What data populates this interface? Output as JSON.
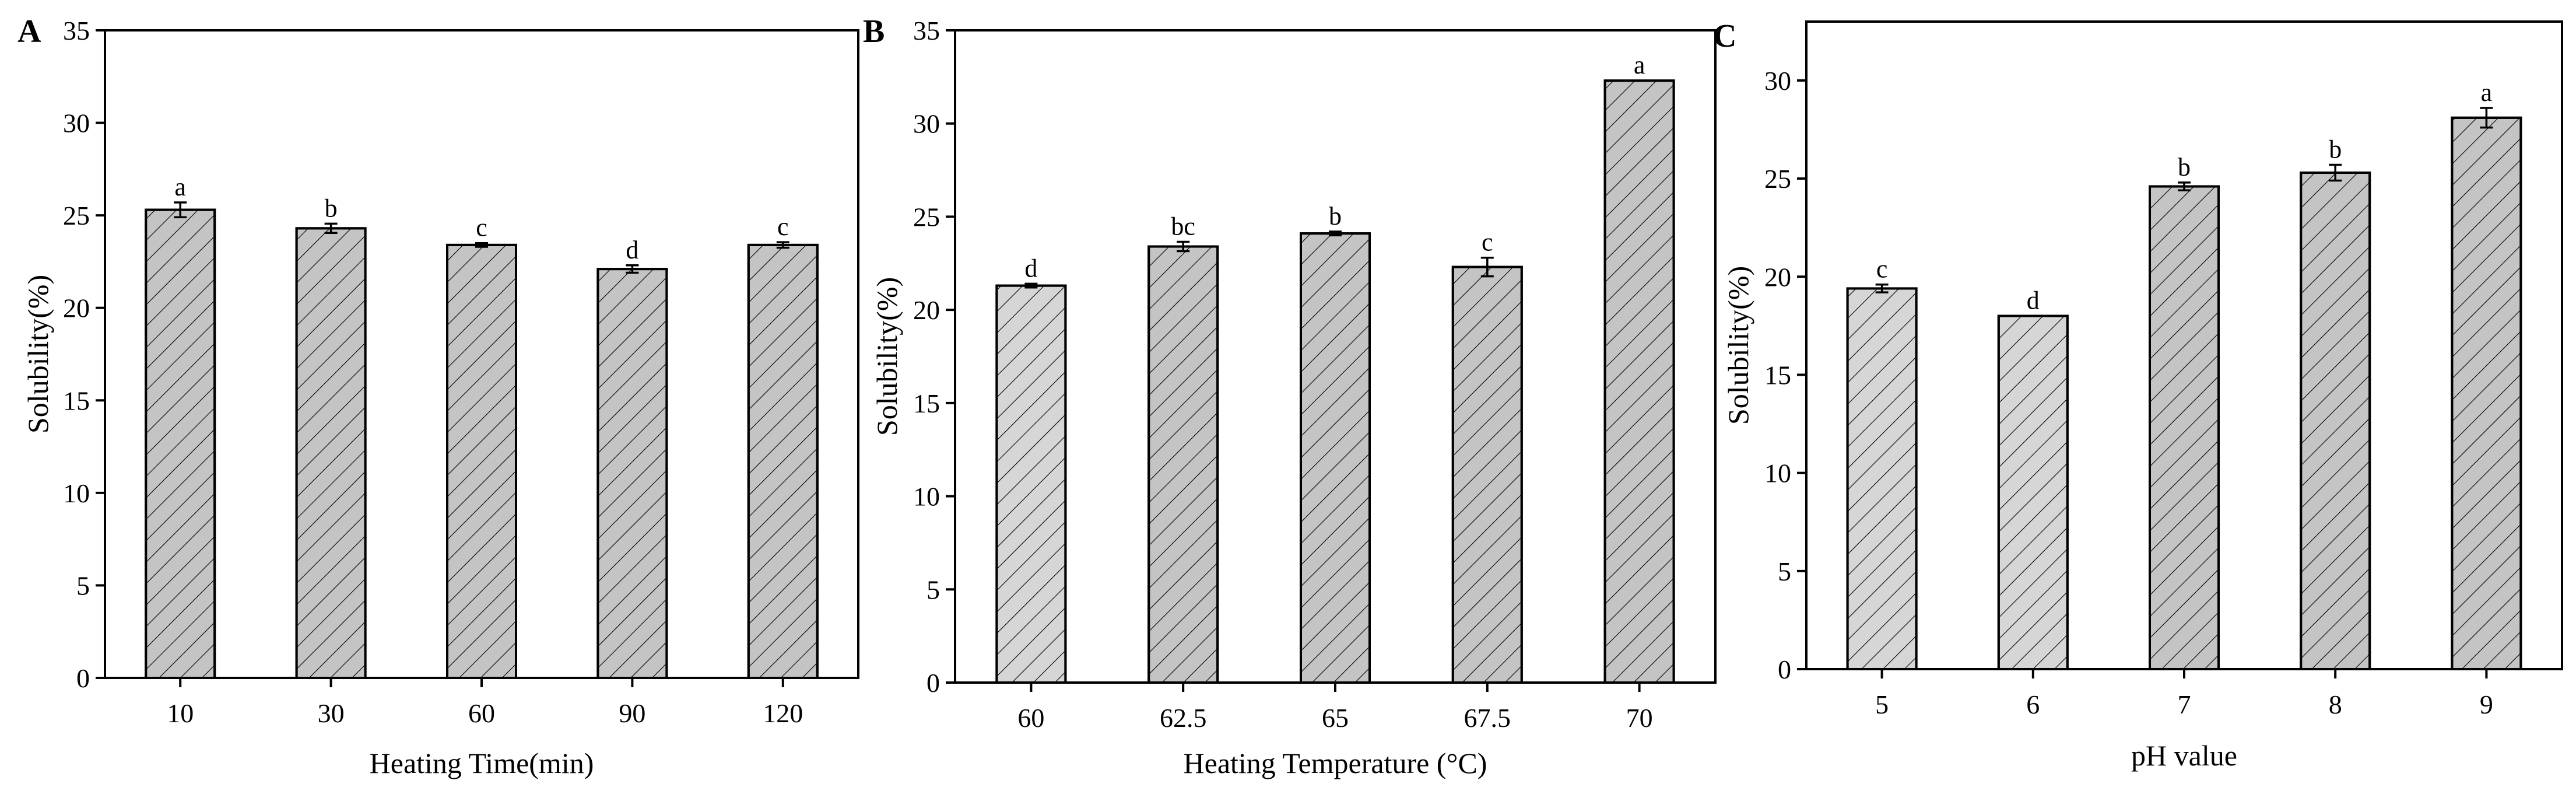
{
  "chart_data": [
    {
      "type": "bar",
      "panel": "A",
      "categories": [
        "10",
        "30",
        "60",
        "90",
        "120"
      ],
      "values": [
        25.3,
        24.3,
        23.4,
        22.1,
        23.4
      ],
      "errors": [
        0.4,
        0.25,
        0.1,
        0.2,
        0.15
      ],
      "significance": [
        "a",
        "b",
        "c",
        "d",
        "c"
      ],
      "fills": [
        "#c4c4c4",
        "#c4c4c4",
        "#c4c4c4",
        "#c4c4c4",
        "#c4c4c4"
      ],
      "xlabel": "Heating Time(min)",
      "ylabel": "Solubility(%)",
      "ylim": [
        0,
        35
      ],
      "yticks": [
        0,
        5,
        10,
        15,
        20,
        25,
        30,
        35
      ]
    },
    {
      "type": "bar",
      "panel": "B",
      "categories": [
        "60",
        "62.5",
        "65",
        "67.5",
        "70"
      ],
      "values": [
        21.3,
        23.4,
        24.1,
        22.3,
        32.3
      ],
      "errors": [
        0.1,
        0.25,
        0.1,
        0.5,
        0.0
      ],
      "significance": [
        "d",
        "bc",
        "b",
        "c",
        "a"
      ],
      "fills": [
        "#d6d6d6",
        "#c4c4c4",
        "#c4c4c4",
        "#c4c4c4",
        "#c4c4c4"
      ],
      "xlabel": "Heating Temperature (°C)",
      "ylabel": "Solubility(%)",
      "ylim": [
        0,
        35
      ],
      "yticks": [
        0,
        5,
        10,
        15,
        20,
        25,
        30,
        35
      ]
    },
    {
      "type": "bar",
      "panel": "C",
      "categories": [
        "5",
        "6",
        "7",
        "8",
        "9"
      ],
      "values": [
        19.4,
        18.0,
        24.6,
        25.3,
        28.1
      ],
      "errors": [
        0.2,
        0.0,
        0.2,
        0.4,
        0.5
      ],
      "significance": [
        "c",
        "d",
        "b",
        "b",
        "a"
      ],
      "fills": [
        "#d6d6d6",
        "#d6d6d6",
        "#c4c4c4",
        "#c4c4c4",
        "#c4c4c4"
      ],
      "xlabel": "pH value",
      "ylabel": "Solubility(%)",
      "ylim": [
        0,
        33
      ],
      "yticks": [
        0,
        5,
        10,
        15,
        20,
        25,
        30
      ]
    }
  ]
}
